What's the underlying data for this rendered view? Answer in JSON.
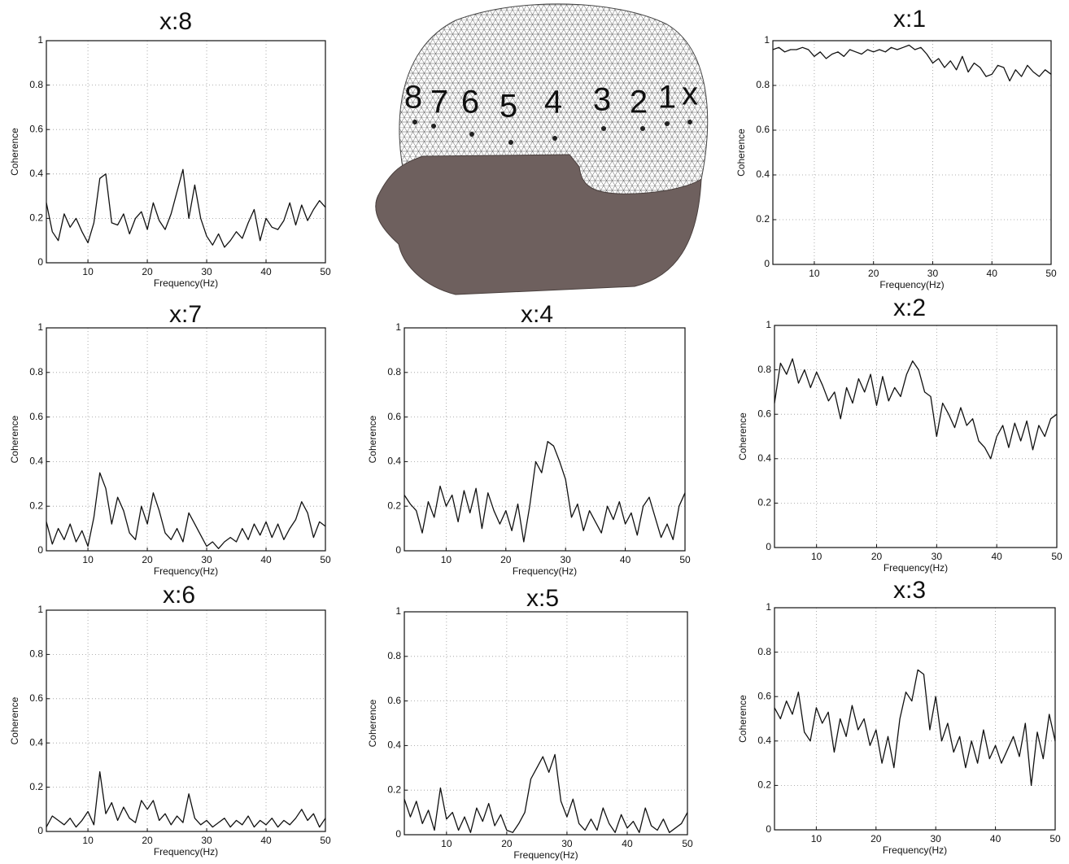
{
  "figure": {
    "electrode_labels": [
      "8",
      "7",
      "6",
      "5",
      "4",
      "3",
      "2",
      "1",
      "x"
    ]
  },
  "chart_data": [
    {
      "type": "line",
      "title": "x:8",
      "xlabel": "Frequency(Hz)",
      "ylabel": "Coherence",
      "color": "#111111",
      "grid": true,
      "xlim": [
        3,
        50
      ],
      "ylim": [
        0,
        1
      ],
      "xticks": [
        10,
        20,
        30,
        40,
        50
      ],
      "yticks": [
        0,
        0.2,
        0.4,
        0.6,
        0.8,
        1
      ],
      "x": [
        3,
        4,
        5,
        6,
        7,
        8,
        9,
        10,
        11,
        12,
        13,
        14,
        15,
        16,
        17,
        18,
        19,
        20,
        21,
        22,
        23,
        24,
        25,
        26,
        27,
        28,
        29,
        30,
        31,
        32,
        33,
        34,
        35,
        36,
        37,
        38,
        39,
        40,
        41,
        42,
        43,
        44,
        45,
        46,
        47,
        48,
        49,
        50
      ],
      "values": [
        0.27,
        0.14,
        0.1,
        0.22,
        0.16,
        0.2,
        0.14,
        0.09,
        0.18,
        0.38,
        0.4,
        0.18,
        0.17,
        0.22,
        0.13,
        0.2,
        0.23,
        0.15,
        0.27,
        0.19,
        0.15,
        0.22,
        0.32,
        0.42,
        0.2,
        0.35,
        0.2,
        0.12,
        0.08,
        0.13,
        0.07,
        0.1,
        0.14,
        0.11,
        0.18,
        0.24,
        0.1,
        0.2,
        0.16,
        0.15,
        0.19,
        0.27,
        0.17,
        0.26,
        0.19,
        0.24,
        0.28,
        0.25
      ]
    },
    {
      "type": "line",
      "title": "x:1",
      "xlabel": "Frequency(Hz)",
      "ylabel": "Coherence",
      "color": "#111111",
      "grid": true,
      "xlim": [
        3,
        50
      ],
      "ylim": [
        0,
        1
      ],
      "xticks": [
        10,
        20,
        30,
        40,
        50
      ],
      "yticks": [
        0,
        0.2,
        0.4,
        0.6,
        0.8,
        1
      ],
      "x": [
        3,
        4,
        5,
        6,
        7,
        8,
        9,
        10,
        11,
        12,
        13,
        14,
        15,
        16,
        17,
        18,
        19,
        20,
        21,
        22,
        23,
        24,
        25,
        26,
        27,
        28,
        29,
        30,
        31,
        32,
        33,
        34,
        35,
        36,
        37,
        38,
        39,
        40,
        41,
        42,
        43,
        44,
        45,
        46,
        47,
        48,
        49,
        50
      ],
      "values": [
        0.96,
        0.97,
        0.95,
        0.96,
        0.96,
        0.97,
        0.96,
        0.93,
        0.95,
        0.92,
        0.94,
        0.95,
        0.93,
        0.96,
        0.95,
        0.94,
        0.96,
        0.95,
        0.96,
        0.95,
        0.97,
        0.96,
        0.97,
        0.98,
        0.96,
        0.97,
        0.94,
        0.9,
        0.92,
        0.88,
        0.91,
        0.87,
        0.93,
        0.86,
        0.9,
        0.88,
        0.84,
        0.85,
        0.89,
        0.88,
        0.82,
        0.87,
        0.84,
        0.89,
        0.86,
        0.84,
        0.87,
        0.85
      ]
    },
    {
      "type": "line",
      "title": "x:7",
      "xlabel": "Frequency(Hz)",
      "ylabel": "Coherence",
      "color": "#111111",
      "grid": true,
      "xlim": [
        3,
        50
      ],
      "ylim": [
        0,
        1
      ],
      "xticks": [
        10,
        20,
        30,
        40,
        50
      ],
      "yticks": [
        0,
        0.2,
        0.4,
        0.6,
        0.8,
        1
      ],
      "x": [
        3,
        4,
        5,
        6,
        7,
        8,
        9,
        10,
        11,
        12,
        13,
        14,
        15,
        16,
        17,
        18,
        19,
        20,
        21,
        22,
        23,
        24,
        25,
        26,
        27,
        28,
        29,
        30,
        31,
        32,
        33,
        34,
        35,
        36,
        37,
        38,
        39,
        40,
        41,
        42,
        43,
        44,
        45,
        46,
        47,
        48,
        49,
        50
      ],
      "values": [
        0.13,
        0.03,
        0.1,
        0.05,
        0.12,
        0.04,
        0.09,
        0.02,
        0.15,
        0.35,
        0.28,
        0.12,
        0.24,
        0.18,
        0.08,
        0.05,
        0.2,
        0.12,
        0.26,
        0.18,
        0.08,
        0.05,
        0.1,
        0.04,
        0.17,
        0.12,
        0.07,
        0.02,
        0.04,
        0.01,
        0.04,
        0.06,
        0.04,
        0.1,
        0.05,
        0.12,
        0.07,
        0.13,
        0.06,
        0.12,
        0.05,
        0.1,
        0.14,
        0.22,
        0.17,
        0.06,
        0.13,
        0.11
      ]
    },
    {
      "type": "line",
      "title": "x:4",
      "xlabel": "Frequency(Hz)",
      "ylabel": "Coherence",
      "color": "#111111",
      "grid": true,
      "xlim": [
        3,
        50
      ],
      "ylim": [
        0,
        1
      ],
      "xticks": [
        10,
        20,
        30,
        40,
        50
      ],
      "yticks": [
        0,
        0.2,
        0.4,
        0.6,
        0.8,
        1
      ],
      "x": [
        3,
        4,
        5,
        6,
        7,
        8,
        9,
        10,
        11,
        12,
        13,
        14,
        15,
        16,
        17,
        18,
        19,
        20,
        21,
        22,
        23,
        24,
        25,
        26,
        27,
        28,
        29,
        30,
        31,
        32,
        33,
        34,
        35,
        36,
        37,
        38,
        39,
        40,
        41,
        42,
        43,
        44,
        45,
        46,
        47,
        48,
        49,
        50
      ],
      "values": [
        0.25,
        0.21,
        0.18,
        0.08,
        0.22,
        0.15,
        0.29,
        0.2,
        0.25,
        0.13,
        0.27,
        0.17,
        0.28,
        0.1,
        0.26,
        0.18,
        0.12,
        0.18,
        0.09,
        0.21,
        0.04,
        0.2,
        0.4,
        0.35,
        0.49,
        0.47,
        0.4,
        0.32,
        0.15,
        0.21,
        0.09,
        0.18,
        0.13,
        0.08,
        0.2,
        0.14,
        0.22,
        0.12,
        0.17,
        0.07,
        0.2,
        0.24,
        0.15,
        0.06,
        0.12,
        0.05,
        0.2,
        0.26
      ]
    },
    {
      "type": "line",
      "title": "x:2",
      "xlabel": "Frequency(Hz)",
      "ylabel": "Coherence",
      "color": "#111111",
      "grid": true,
      "xlim": [
        3,
        50
      ],
      "ylim": [
        0,
        1
      ],
      "xticks": [
        10,
        20,
        30,
        40,
        50
      ],
      "yticks": [
        0,
        0.2,
        0.4,
        0.6,
        0.8,
        1
      ],
      "x": [
        3,
        4,
        5,
        6,
        7,
        8,
        9,
        10,
        11,
        12,
        13,
        14,
        15,
        16,
        17,
        18,
        19,
        20,
        21,
        22,
        23,
        24,
        25,
        26,
        27,
        28,
        29,
        30,
        31,
        32,
        33,
        34,
        35,
        36,
        37,
        38,
        39,
        40,
        41,
        42,
        43,
        44,
        45,
        46,
        47,
        48,
        49,
        50
      ],
      "values": [
        0.65,
        0.83,
        0.78,
        0.85,
        0.74,
        0.8,
        0.72,
        0.79,
        0.73,
        0.66,
        0.7,
        0.58,
        0.72,
        0.65,
        0.76,
        0.7,
        0.78,
        0.64,
        0.77,
        0.66,
        0.72,
        0.68,
        0.78,
        0.84,
        0.8,
        0.7,
        0.68,
        0.5,
        0.65,
        0.6,
        0.54,
        0.63,
        0.55,
        0.58,
        0.48,
        0.45,
        0.4,
        0.5,
        0.55,
        0.45,
        0.56,
        0.48,
        0.57,
        0.44,
        0.55,
        0.5,
        0.58,
        0.6
      ]
    },
    {
      "type": "line",
      "title": "x:6",
      "xlabel": "Frequency(Hz)",
      "ylabel": "Coherence",
      "color": "#111111",
      "grid": true,
      "xlim": [
        3,
        50
      ],
      "ylim": [
        0,
        1
      ],
      "xticks": [
        10,
        20,
        30,
        40,
        50
      ],
      "yticks": [
        0,
        0.2,
        0.4,
        0.6,
        0.8,
        1
      ],
      "x": [
        3,
        4,
        5,
        6,
        7,
        8,
        9,
        10,
        11,
        12,
        13,
        14,
        15,
        16,
        17,
        18,
        19,
        20,
        21,
        22,
        23,
        24,
        25,
        26,
        27,
        28,
        29,
        30,
        31,
        32,
        33,
        34,
        35,
        36,
        37,
        38,
        39,
        40,
        41,
        42,
        43,
        44,
        45,
        46,
        47,
        48,
        49,
        50
      ],
      "values": [
        0.02,
        0.07,
        0.05,
        0.03,
        0.06,
        0.02,
        0.05,
        0.09,
        0.03,
        0.27,
        0.08,
        0.13,
        0.05,
        0.11,
        0.06,
        0.04,
        0.14,
        0.1,
        0.14,
        0.05,
        0.08,
        0.03,
        0.07,
        0.04,
        0.17,
        0.06,
        0.03,
        0.05,
        0.02,
        0.04,
        0.06,
        0.02,
        0.05,
        0.03,
        0.07,
        0.02,
        0.05,
        0.03,
        0.06,
        0.02,
        0.05,
        0.03,
        0.06,
        0.1,
        0.05,
        0.08,
        0.02,
        0.06
      ]
    },
    {
      "type": "line",
      "title": "x:5",
      "xlabel": "Frequency(Hz)",
      "ylabel": "Coherence",
      "color": "#111111",
      "grid": true,
      "xlim": [
        3,
        50
      ],
      "ylim": [
        0,
        1
      ],
      "xticks": [
        10,
        20,
        30,
        40,
        50
      ],
      "yticks": [
        0,
        0.2,
        0.4,
        0.6,
        0.8,
        1
      ],
      "x": [
        3,
        4,
        5,
        6,
        7,
        8,
        9,
        10,
        11,
        12,
        13,
        14,
        15,
        16,
        17,
        18,
        19,
        20,
        21,
        22,
        23,
        24,
        25,
        26,
        27,
        28,
        29,
        30,
        31,
        32,
        33,
        34,
        35,
        36,
        37,
        38,
        39,
        40,
        41,
        42,
        43,
        44,
        45,
        46,
        47,
        48,
        49,
        50
      ],
      "values": [
        0.16,
        0.08,
        0.15,
        0.05,
        0.11,
        0.02,
        0.21,
        0.07,
        0.1,
        0.02,
        0.08,
        0.01,
        0.12,
        0.06,
        0.14,
        0.04,
        0.09,
        0.02,
        0.01,
        0.05,
        0.1,
        0.25,
        0.3,
        0.35,
        0.28,
        0.36,
        0.15,
        0.08,
        0.16,
        0.05,
        0.02,
        0.07,
        0.02,
        0.12,
        0.05,
        0.01,
        0.09,
        0.03,
        0.06,
        0.01,
        0.12,
        0.04,
        0.02,
        0.07,
        0.01,
        0.03,
        0.05,
        0.1
      ]
    },
    {
      "type": "line",
      "title": "x:3",
      "xlabel": "Frequency(Hz)",
      "ylabel": "Coherence",
      "color": "#111111",
      "grid": true,
      "xlim": [
        3,
        50
      ],
      "ylim": [
        0,
        1
      ],
      "xticks": [
        10,
        20,
        30,
        40,
        50
      ],
      "yticks": [
        0,
        0.2,
        0.4,
        0.6,
        0.8,
        1
      ],
      "x": [
        3,
        4,
        5,
        6,
        7,
        8,
        9,
        10,
        11,
        12,
        13,
        14,
        15,
        16,
        17,
        18,
        19,
        20,
        21,
        22,
        23,
        24,
        25,
        26,
        27,
        28,
        29,
        30,
        31,
        32,
        33,
        34,
        35,
        36,
        37,
        38,
        39,
        40,
        41,
        42,
        43,
        44,
        45,
        46,
        47,
        48,
        49,
        50
      ],
      "values": [
        0.55,
        0.5,
        0.58,
        0.52,
        0.62,
        0.44,
        0.4,
        0.55,
        0.48,
        0.53,
        0.35,
        0.5,
        0.42,
        0.56,
        0.45,
        0.5,
        0.38,
        0.45,
        0.3,
        0.42,
        0.28,
        0.5,
        0.62,
        0.58,
        0.72,
        0.7,
        0.45,
        0.6,
        0.4,
        0.48,
        0.35,
        0.42,
        0.28,
        0.4,
        0.3,
        0.45,
        0.32,
        0.38,
        0.3,
        0.36,
        0.42,
        0.33,
        0.48,
        0.2,
        0.44,
        0.32,
        0.52,
        0.4
      ]
    }
  ]
}
